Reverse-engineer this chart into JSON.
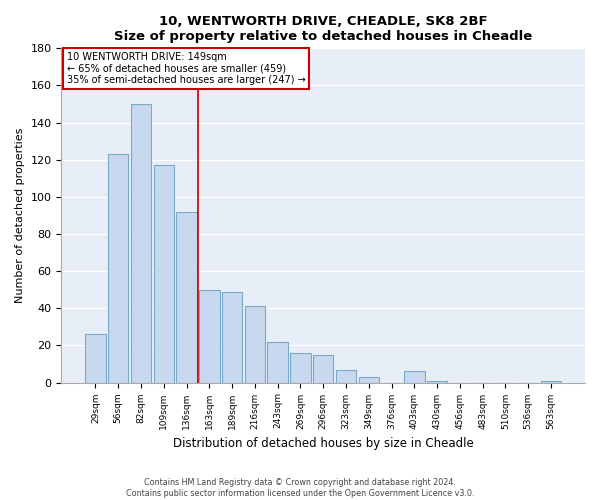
{
  "title": "10, WENTWORTH DRIVE, CHEADLE, SK8 2BF",
  "subtitle": "Size of property relative to detached houses in Cheadle",
  "xlabel": "Distribution of detached houses by size in Cheadle",
  "ylabel": "Number of detached properties",
  "bar_labels": [
    "29sqm",
    "56sqm",
    "82sqm",
    "109sqm",
    "136sqm",
    "163sqm",
    "189sqm",
    "216sqm",
    "243sqm",
    "269sqm",
    "296sqm",
    "323sqm",
    "349sqm",
    "376sqm",
    "403sqm",
    "430sqm",
    "456sqm",
    "483sqm",
    "510sqm",
    "536sqm",
    "563sqm"
  ],
  "bar_values": [
    26,
    123,
    150,
    117,
    92,
    50,
    49,
    41,
    22,
    16,
    15,
    7,
    3,
    0,
    6,
    1,
    0,
    0,
    0,
    0,
    1
  ],
  "bar_color": "#c8d8ee",
  "bar_edge_color": "#7aaac8",
  "ylim": [
    0,
    180
  ],
  "yticks": [
    0,
    20,
    40,
    60,
    80,
    100,
    120,
    140,
    160,
    180
  ],
  "ref_line_x": 4.5,
  "ref_line_color": "#cc0000",
  "annotation_line1": "10 WENTWORTH DRIVE: 149sqm",
  "annotation_line2": "← 65% of detached houses are smaller (459)",
  "annotation_line3": "35% of semi-detached houses are larger (247) →",
  "footer1": "Contains HM Land Registry data © Crown copyright and database right 2024.",
  "footer2": "Contains public sector information licensed under the Open Government Licence v3.0.",
  "plot_bg_color": "#e8eef8",
  "fig_bg_color": "#ffffff",
  "grid_color": "#ffffff"
}
